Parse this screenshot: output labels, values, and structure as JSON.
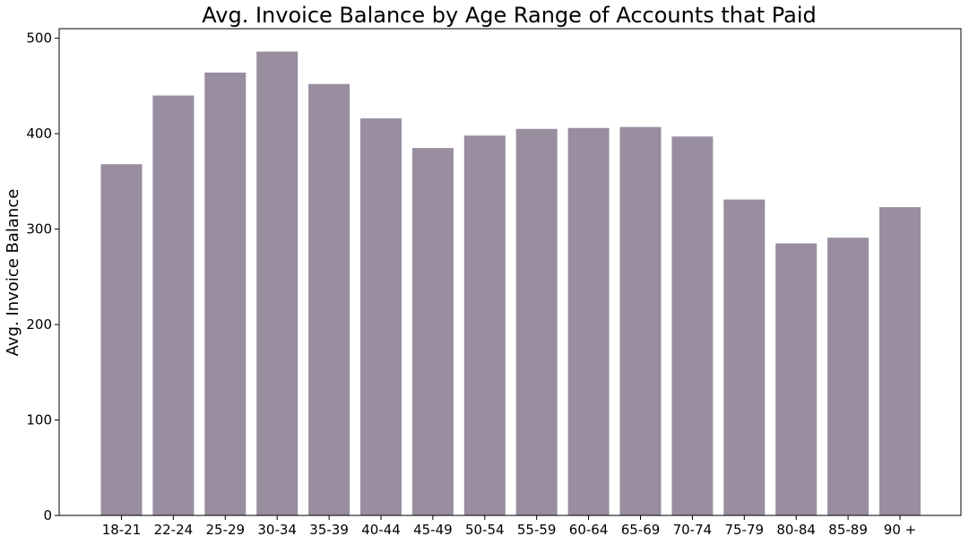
{
  "chart_data": {
    "type": "bar",
    "title": "Avg. Invoice Balance by Age Range of Accounts that Paid",
    "xlabel": "",
    "ylabel": "Avg. Invoice Balance",
    "categories": [
      "18-21",
      "22-24",
      "25-29",
      "30-34",
      "35-39",
      "40-44",
      "45-49",
      "50-54",
      "55-59",
      "60-64",
      "65-69",
      "70-74",
      "75-79",
      "80-84",
      "85-89",
      "90 +"
    ],
    "values": [
      368,
      440,
      464,
      486,
      452,
      416,
      385,
      398,
      405,
      406,
      407,
      397,
      331,
      285,
      291,
      323
    ],
    "yticks": [
      0,
      100,
      200,
      300,
      400,
      500
    ],
    "ylim": [
      0,
      510
    ],
    "grid": false,
    "legend": "none",
    "bar_color": "#998da0"
  }
}
